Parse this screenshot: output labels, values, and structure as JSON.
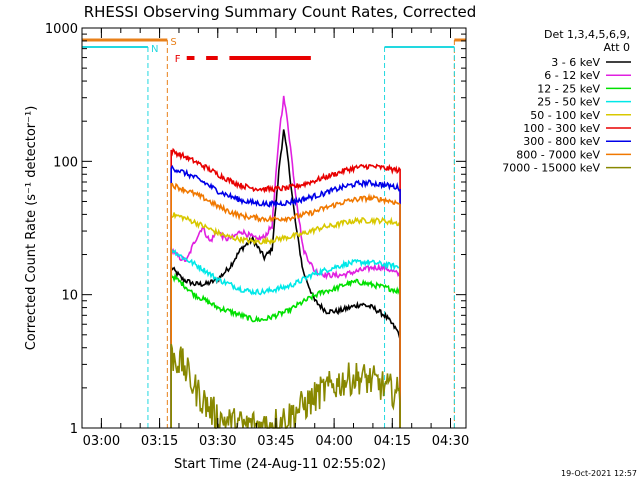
{
  "chart_data": {
    "type": "line",
    "title": "RHESSI Observing Summary Count Rates, Corrected",
    "xlabel": "Start Time (24-Aug-11 02:55:02)",
    "ylabel": "Corrected Count Rate (s⁻¹ detector⁻¹)",
    "ylog": true,
    "ylim": [
      1,
      1000
    ],
    "yticks": [
      {
        "v": 1,
        "label": "1"
      },
      {
        "v": 10,
        "label": "10"
      },
      {
        "v": 100,
        "label": "100"
      },
      {
        "v": 1000,
        "label": "1000"
      }
    ],
    "xlim": [
      "02:55",
      "04:34"
    ],
    "xticks": [
      "03:00",
      "03:15",
      "03:30",
      "03:45",
      "04:00",
      "04:15",
      "04:30"
    ],
    "legend_header": [
      "Det 1,3,4,5,6,9,",
      "Att 0"
    ],
    "legend_position": "right",
    "timestamp": "19-Oct-2021 12:57",
    "annotations": {
      "saa_label": "S",
      "night_label": "N",
      "flare_label": "F",
      "saa_color": "#e8801a",
      "night_color": "#22d8e0",
      "flare_color": "#e80000",
      "saa_intervals": [
        [
          "02:55",
          "03:17"
        ],
        [
          "04:31",
          "04:34"
        ]
      ],
      "night_intervals": [
        [
          "02:55",
          "03:12"
        ],
        [
          "04:13",
          "04:31"
        ]
      ],
      "flare_intervals": [
        [
          "03:22",
          "03:24"
        ],
        [
          "03:27",
          "03:30"
        ],
        [
          "03:33",
          "03:54"
        ]
      ],
      "data_gaps": [
        [
          "02:55",
          "03:18"
        ],
        [
          "04:18",
          "04:34"
        ]
      ]
    },
    "series": [
      {
        "name": "3 - 6 keV",
        "color": "#000000",
        "points": [
          [
            "03:18",
            16
          ],
          [
            "03:21",
            13
          ],
          [
            "03:24",
            12
          ],
          [
            "03:27",
            12
          ],
          [
            "03:30",
            13
          ],
          [
            "03:33",
            16
          ],
          [
            "03:36",
            22
          ],
          [
            "03:39",
            26
          ],
          [
            "03:42",
            19
          ],
          [
            "03:44",
            22
          ],
          [
            "03:46",
            100
          ],
          [
            "03:47",
            170
          ],
          [
            "03:48",
            110
          ],
          [
            "03:50",
            35
          ],
          [
            "03:52",
            15
          ],
          [
            "03:55",
            9
          ],
          [
            "03:58",
            7.5
          ],
          [
            "04:01",
            7.5
          ],
          [
            "04:04",
            8
          ],
          [
            "04:07",
            8.5
          ],
          [
            "04:10",
            8
          ],
          [
            "04:13",
            7
          ],
          [
            "04:15",
            6
          ],
          [
            "04:17",
            5
          ]
        ]
      },
      {
        "name": "6 - 12 keV",
        "color": "#e020e0",
        "points": [
          [
            "03:18",
            22
          ],
          [
            "03:20",
            19
          ],
          [
            "03:22",
            18
          ],
          [
            "03:24",
            25
          ],
          [
            "03:26",
            32
          ],
          [
            "03:28",
            25
          ],
          [
            "03:30",
            30
          ],
          [
            "03:32",
            26
          ],
          [
            "03:34",
            27
          ],
          [
            "03:36",
            30
          ],
          [
            "03:38",
            28
          ],
          [
            "03:40",
            26
          ],
          [
            "03:42",
            27
          ],
          [
            "03:44",
            33
          ],
          [
            "03:46",
            180
          ],
          [
            "03:47",
            300
          ],
          [
            "03:48",
            200
          ],
          [
            "03:50",
            60
          ],
          [
            "03:52",
            22
          ],
          [
            "03:55",
            15
          ],
          [
            "03:58",
            14
          ],
          [
            "04:02",
            14
          ],
          [
            "04:06",
            15
          ],
          [
            "04:10",
            16
          ],
          [
            "04:13",
            16
          ],
          [
            "04:15",
            15
          ],
          [
            "04:17",
            14
          ]
        ]
      },
      {
        "name": "12 - 25 keV",
        "color": "#00e000",
        "points": [
          [
            "03:18",
            14
          ],
          [
            "03:21",
            12
          ],
          [
            "03:24",
            10
          ],
          [
            "03:27",
            9
          ],
          [
            "03:30",
            8
          ],
          [
            "03:33",
            7.5
          ],
          [
            "03:36",
            7
          ],
          [
            "03:39",
            6.5
          ],
          [
            "03:42",
            6.5
          ],
          [
            "03:45",
            7
          ],
          [
            "03:48",
            7.5
          ],
          [
            "03:51",
            8.5
          ],
          [
            "03:54",
            9.5
          ],
          [
            "03:57",
            10.5
          ],
          [
            "04:00",
            11
          ],
          [
            "04:03",
            12
          ],
          [
            "04:06",
            12.5
          ],
          [
            "04:09",
            12
          ],
          [
            "04:12",
            11.5
          ],
          [
            "04:15",
            11
          ],
          [
            "04:17",
            10.5
          ]
        ]
      },
      {
        "name": "25 - 50 keV",
        "color": "#00e8e8",
        "points": [
          [
            "03:18",
            22
          ],
          [
            "03:21",
            19
          ],
          [
            "03:24",
            17
          ],
          [
            "03:27",
            15
          ],
          [
            "03:30",
            13
          ],
          [
            "03:33",
            12
          ],
          [
            "03:36",
            11
          ],
          [
            "03:39",
            10.5
          ],
          [
            "03:42",
            10.5
          ],
          [
            "03:45",
            11
          ],
          [
            "03:48",
            11.5
          ],
          [
            "03:51",
            12.5
          ],
          [
            "03:54",
            14
          ],
          [
            "03:57",
            15
          ],
          [
            "04:00",
            16
          ],
          [
            "04:03",
            17
          ],
          [
            "04:06",
            17.5
          ],
          [
            "04:09",
            17.5
          ],
          [
            "04:12",
            17
          ],
          [
            "04:15",
            16.5
          ],
          [
            "04:17",
            16
          ]
        ]
      },
      {
        "name": "50 - 100 keV",
        "color": "#d8c800",
        "points": [
          [
            "03:18",
            40
          ],
          [
            "03:21",
            38
          ],
          [
            "03:24",
            35
          ],
          [
            "03:27",
            32
          ],
          [
            "03:30",
            29
          ],
          [
            "03:33",
            27
          ],
          [
            "03:36",
            26
          ],
          [
            "03:39",
            25
          ],
          [
            "03:42",
            25
          ],
          [
            "03:45",
            26
          ],
          [
            "03:48",
            27
          ],
          [
            "03:51",
            28
          ],
          [
            "03:54",
            30
          ],
          [
            "03:57",
            32
          ],
          [
            "04:00",
            33
          ],
          [
            "04:03",
            35
          ],
          [
            "04:06",
            36
          ],
          [
            "04:09",
            36
          ],
          [
            "04:12",
            36
          ],
          [
            "04:15",
            35
          ],
          [
            "04:17",
            34
          ]
        ]
      },
      {
        "name": "100 - 300 keV",
        "color": "#e80000",
        "points": [
          [
            "03:18",
            120
          ],
          [
            "03:21",
            110
          ],
          [
            "03:24",
            100
          ],
          [
            "03:27",
            90
          ],
          [
            "03:30",
            80
          ],
          [
            "03:33",
            72
          ],
          [
            "03:36",
            66
          ],
          [
            "03:39",
            63
          ],
          [
            "03:42",
            62
          ],
          [
            "03:45",
            62
          ],
          [
            "03:48",
            63
          ],
          [
            "03:51",
            66
          ],
          [
            "03:54",
            70
          ],
          [
            "03:57",
            75
          ],
          [
            "04:00",
            80
          ],
          [
            "04:03",
            86
          ],
          [
            "04:06",
            90
          ],
          [
            "04:09",
            92
          ],
          [
            "04:12",
            90
          ],
          [
            "04:15",
            87
          ],
          [
            "04:17",
            85
          ]
        ]
      },
      {
        "name": "300 - 800 keV",
        "color": "#0000e8",
        "points": [
          [
            "03:18",
            90
          ],
          [
            "03:21",
            83
          ],
          [
            "03:24",
            76
          ],
          [
            "03:27",
            68
          ],
          [
            "03:30",
            60
          ],
          [
            "03:33",
            55
          ],
          [
            "03:36",
            51
          ],
          [
            "03:39",
            49
          ],
          [
            "03:42",
            48
          ],
          [
            "03:45",
            48
          ],
          [
            "03:48",
            49
          ],
          [
            "03:51",
            51
          ],
          [
            "03:54",
            54
          ],
          [
            "03:57",
            57
          ],
          [
            "04:00",
            61
          ],
          [
            "04:03",
            65
          ],
          [
            "04:06",
            68
          ],
          [
            "04:09",
            69
          ],
          [
            "04:12",
            67
          ],
          [
            "04:15",
            65
          ],
          [
            "04:17",
            63
          ]
        ]
      },
      {
        "name": "800 - 7000 keV",
        "color": "#f07800",
        "points": [
          [
            "03:18",
            67
          ],
          [
            "03:21",
            62
          ],
          [
            "03:24",
            57
          ],
          [
            "03:27",
            52
          ],
          [
            "03:30",
            46
          ],
          [
            "03:33",
            42
          ],
          [
            "03:36",
            39
          ],
          [
            "03:39",
            38
          ],
          [
            "03:42",
            37
          ],
          [
            "03:45",
            37
          ],
          [
            "03:48",
            37.5
          ],
          [
            "03:51",
            39
          ],
          [
            "03:54",
            41
          ],
          [
            "03:57",
            44
          ],
          [
            "04:00",
            47
          ],
          [
            "04:03",
            50
          ],
          [
            "04:06",
            52
          ],
          [
            "04:09",
            53
          ],
          [
            "04:12",
            52
          ],
          [
            "04:15",
            50
          ],
          [
            "04:17",
            48
          ]
        ]
      },
      {
        "name": "7000 - 15000 keV",
        "color": "#888800",
        "points": [
          [
            "03:18",
            3.5
          ],
          [
            "03:21",
            3
          ],
          [
            "03:24",
            2
          ],
          [
            "03:27",
            1.5
          ],
          [
            "03:30",
            1.2
          ],
          [
            "03:33",
            1.1
          ],
          [
            "03:36",
            1.05
          ],
          [
            "03:39",
            1.05
          ],
          [
            "03:42",
            1.05
          ],
          [
            "03:45",
            1.1
          ],
          [
            "03:48",
            1.2
          ],
          [
            "03:51",
            1.4
          ],
          [
            "03:54",
            1.6
          ],
          [
            "03:57",
            1.9
          ],
          [
            "04:00",
            2.1
          ],
          [
            "04:03",
            2.3
          ],
          [
            "04:06",
            2.4
          ],
          [
            "04:09",
            2.3
          ],
          [
            "04:12",
            2.1
          ],
          [
            "04:15",
            1.9
          ],
          [
            "04:17",
            1.8
          ]
        ]
      }
    ]
  }
}
